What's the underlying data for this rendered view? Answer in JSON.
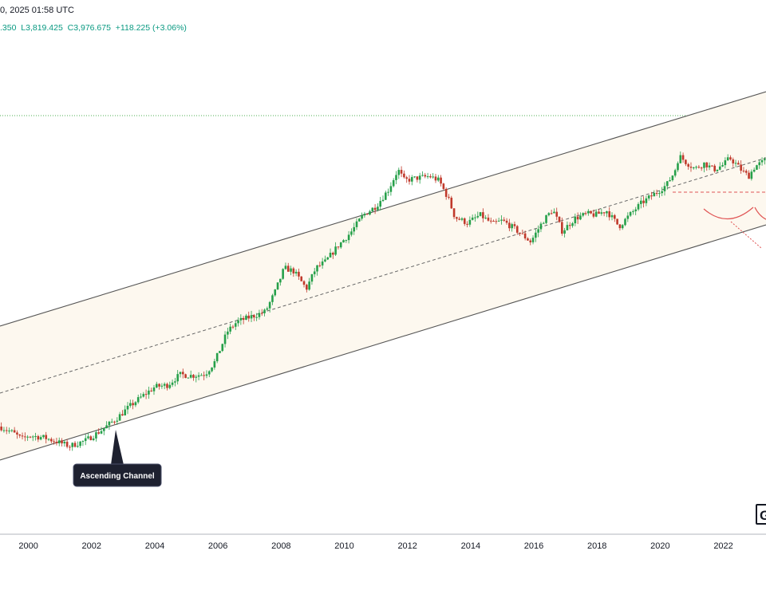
{
  "header": {
    "date_text": "0, 2025 01:58 UTC",
    "ohlc_text": ".350  L3,819.425  C3,976.675  +118.225 (+3.06%)"
  },
  "logo_text": "G",
  "colors": {
    "up": "#26a04a",
    "down": "#c0392b",
    "channel_line": "#555555",
    "channel_fill": "#fdf8ef",
    "midline": "#666666",
    "resistance": "#e05555",
    "target_line": "#4caf50"
  },
  "chart_data": {
    "type": "candlestick",
    "x_axis": {
      "unit": "year",
      "range": [
        1999.1,
        2023.35
      ],
      "ticks": [
        "2000",
        "2002",
        "2004",
        "2006",
        "2008",
        "2010",
        "2012",
        "2014",
        "2016",
        "2018",
        "2020",
        "2022"
      ]
    },
    "y_axis": {
      "scale": "log",
      "range": [
        200,
        4500
      ],
      "labels_visible": false
    },
    "grid": false,
    "path": [
      [
        1999.1,
        300
      ],
      [
        1999.5,
        288
      ],
      [
        1999.8,
        275
      ],
      [
        2000.0,
        282
      ],
      [
        2000.5,
        278
      ],
      [
        2001.0,
        268
      ],
      [
        2001.3,
        262
      ],
      [
        2001.8,
        272
      ],
      [
        2002.3,
        292
      ],
      [
        2002.8,
        318
      ],
      [
        2003.2,
        345
      ],
      [
        2003.6,
        370
      ],
      [
        2004.0,
        395
      ],
      [
        2004.4,
        400
      ],
      [
        2004.8,
        430
      ],
      [
        2005.2,
        427
      ],
      [
        2005.6,
        432
      ],
      [
        2005.9,
        470
      ],
      [
        2006.3,
        580
      ],
      [
        2006.6,
        620
      ],
      [
        2007.0,
        640
      ],
      [
        2007.5,
        665
      ],
      [
        2007.8,
        760
      ],
      [
        2008.1,
        900
      ],
      [
        2008.4,
        880
      ],
      [
        2008.8,
        780
      ],
      [
        2009.1,
        900
      ],
      [
        2009.4,
        940
      ],
      [
        2009.8,
        1050
      ],
      [
        2010.2,
        1150
      ],
      [
        2010.6,
        1300
      ],
      [
        2011.0,
        1380
      ],
      [
        2011.4,
        1550
      ],
      [
        2011.7,
        1780
      ],
      [
        2011.9,
        1650
      ],
      [
        2012.3,
        1680
      ],
      [
        2012.7,
        1700
      ],
      [
        2013.0,
        1650
      ],
      [
        2013.3,
        1450
      ],
      [
        2013.5,
        1280
      ],
      [
        2013.9,
        1230
      ],
      [
        2014.3,
        1300
      ],
      [
        2014.7,
        1220
      ],
      [
        2015.0,
        1250
      ],
      [
        2015.4,
        1180
      ],
      [
        2015.9,
        1080
      ],
      [
        2016.3,
        1250
      ],
      [
        2016.6,
        1350
      ],
      [
        2016.9,
        1160
      ],
      [
        2017.3,
        1270
      ],
      [
        2017.7,
        1310
      ],
      [
        2017.95,
        1300
      ],
      [
        2018.3,
        1340
      ],
      [
        2018.7,
        1200
      ],
      [
        2019.0,
        1290
      ],
      [
        2019.4,
        1410
      ],
      [
        2019.8,
        1500
      ],
      [
        2020.2,
        1600
      ],
      [
        2020.45,
        1750
      ],
      [
        2020.6,
        1960
      ],
      [
        2020.8,
        1880
      ],
      [
        2021.1,
        1790
      ],
      [
        2021.4,
        1860
      ],
      [
        2021.7,
        1780
      ],
      [
        2022.0,
        1840
      ],
      [
        2022.2,
        1930
      ],
      [
        2022.4,
        1850
      ],
      [
        2022.6,
        1760
      ],
      [
        2022.8,
        1700
      ],
      [
        2023.0,
        1820
      ],
      [
        2023.35,
        1900
      ]
    ]
  },
  "annotations": {
    "callout_text": "Ascending Channel"
  }
}
